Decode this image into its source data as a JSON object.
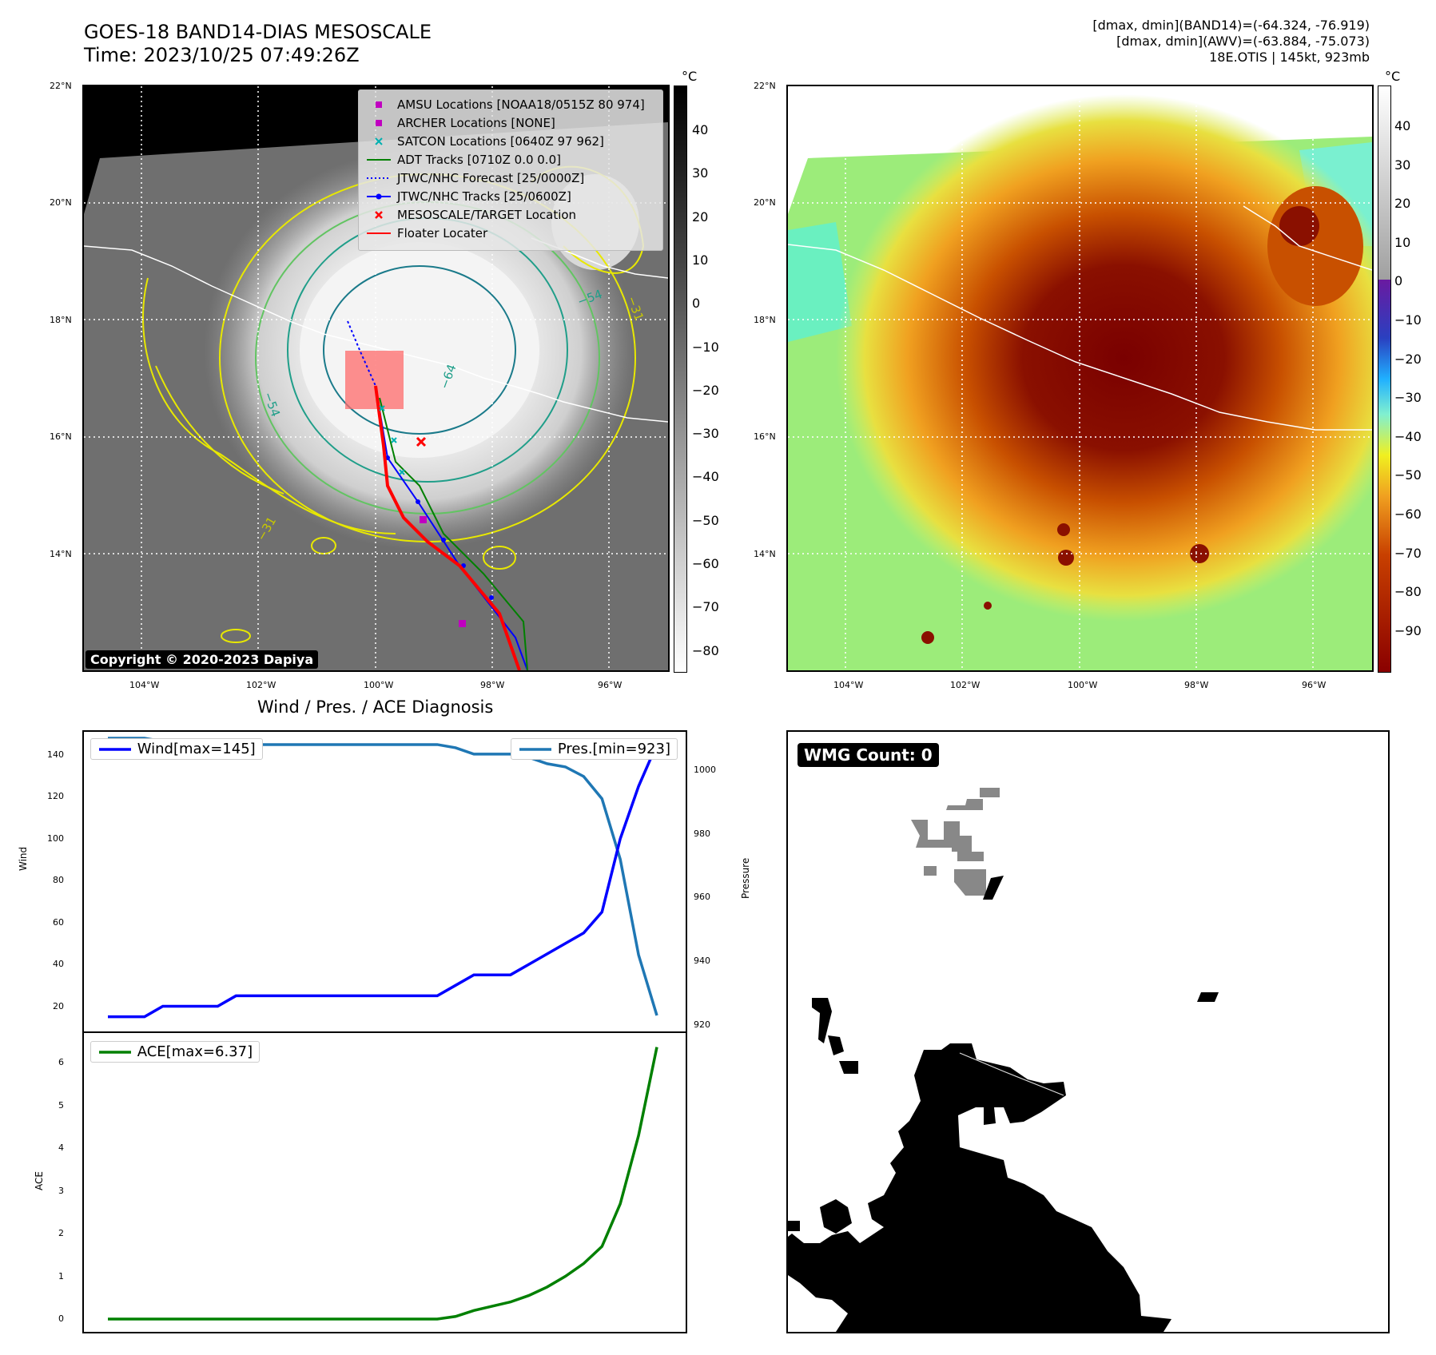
{
  "header": {
    "title_line1": "GOES-18 BAND14-DIAS MESOSCALE",
    "title_line2": "Time: 2023/10/25 07:49:26Z",
    "right_line1": "[dmax, dmin](BAND14)=(-64.324, -76.919)",
    "right_line2": "[dmax, dmin](AWV)=(-63.884, -75.073)",
    "right_line3": "18E.OTIS | 145kt, 923mb"
  },
  "map_axes": {
    "lat_labels": [
      "22°N",
      "20°N",
      "18°N",
      "16°N",
      "14°N"
    ],
    "lon_labels": [
      "104°W",
      "102°W",
      "100°W",
      "98°W",
      "96°W"
    ]
  },
  "left_map": {
    "copyright": "Copyright © 2020-2023 Dapiya",
    "colorbar_unit": "°C",
    "colorbar_ticks": [
      "40",
      "30",
      "20",
      "10",
      "0",
      "−10",
      "−20",
      "−30",
      "−40",
      "−50",
      "−60",
      "−70",
      "−80"
    ],
    "contour_labels": [
      "−54",
      "−64",
      "−54",
      "−31",
      "−31"
    ],
    "legend": [
      {
        "label": "AMSU Locations [NOAA18/0515Z 80 974]",
        "icon": "magenta-square-marker",
        "color": "#c000c0"
      },
      {
        "label": "ARCHER Locations [NONE]",
        "icon": "magenta-square-marker",
        "color": "#c000c0"
      },
      {
        "label": "SATCON Locations [0640Z 97 962]",
        "icon": "cyan-x-marker",
        "color": "#00b0b0"
      },
      {
        "label": "ADT Tracks [0710Z 0.0 0.0]",
        "icon": "green-line",
        "color": "#008000"
      },
      {
        "label": "JTWC/NHC Forecast [25/0000Z]",
        "icon": "blue-dotted-line",
        "color": "#0000ff"
      },
      {
        "label": "JTWC/NHC Tracks [25/0600Z]",
        "icon": "blue-dot-line",
        "color": "#0000ff"
      },
      {
        "label": "MESOSCALE/TARGET Location",
        "icon": "red-x-marker",
        "color": "#ff0000"
      },
      {
        "label": "Floater Locater",
        "icon": "red-line",
        "color": "#ff0000"
      }
    ]
  },
  "right_map": {
    "colorbar_unit": "°C",
    "colorbar_ticks": [
      "40",
      "30",
      "20",
      "10",
      "0",
      "−10",
      "−20",
      "−30",
      "−40",
      "−50",
      "−60",
      "−70",
      "−80",
      "−90"
    ]
  },
  "diag": {
    "title": "Wind / Pres. / ACE Diagnosis",
    "wind_legend": "Wind[max=145]",
    "pres_legend": "Pres.[min=923]",
    "ace_legend": "ACE[max=6.37]",
    "wind_axis_label": "Wind",
    "pres_axis_label": "Pressure",
    "ace_axis_label": "ACE",
    "wind_ticks": [
      "140",
      "120",
      "100",
      "80",
      "60",
      "40",
      "20"
    ],
    "pres_ticks": [
      "1000",
      "980",
      "960",
      "940",
      "920"
    ],
    "ace_ticks": [
      "6",
      "5",
      "4",
      "3",
      "2",
      "1",
      "0"
    ]
  },
  "wmg": {
    "badge": "WMG Count: 0"
  },
  "chart_data": [
    {
      "type": "line",
      "title": "Wind / Pres. / ACE Diagnosis",
      "series": [
        {
          "name": "Wind[max=145]",
          "color": "#0000ff",
          "x": [
            0,
            1,
            2,
            3,
            4,
            5,
            6,
            7,
            8,
            9,
            10,
            11,
            12,
            13,
            14,
            15,
            16,
            17,
            18,
            19,
            20,
            21,
            22,
            23,
            24,
            25,
            26,
            27,
            28,
            29,
            30
          ],
          "values": [
            15,
            15,
            15,
            20,
            20,
            20,
            20,
            25,
            25,
            25,
            25,
            25,
            25,
            25,
            25,
            25,
            25,
            25,
            25,
            30,
            35,
            35,
            35,
            40,
            45,
            50,
            55,
            65,
            100,
            125,
            145
          ]
        },
        {
          "name": "Pres.[min=923]",
          "color": "#1f77b4",
          "x": [
            0,
            1,
            2,
            3,
            4,
            5,
            6,
            7,
            8,
            9,
            10,
            11,
            12,
            13,
            14,
            15,
            16,
            17,
            18,
            19,
            20,
            21,
            22,
            23,
            24,
            25,
            26,
            27,
            28,
            29,
            30
          ],
          "values": [
            1010,
            1010,
            1010,
            1009,
            1009,
            1009,
            1009,
            1008,
            1008,
            1008,
            1008,
            1008,
            1008,
            1008,
            1008,
            1008,
            1008,
            1008,
            1008,
            1007,
            1005,
            1005,
            1005,
            1004,
            1002,
            1001,
            998,
            991,
            972,
            942,
            923
          ]
        }
      ],
      "ylabel": "Wind",
      "y2label": "Pressure",
      "ylim": [
        8,
        151
      ],
      "y2lim": [
        918,
        1012
      ]
    },
    {
      "type": "line",
      "series": [
        {
          "name": "ACE[max=6.37]",
          "color": "#008000",
          "x": [
            0,
            1,
            2,
            3,
            4,
            5,
            6,
            7,
            8,
            9,
            10,
            11,
            12,
            13,
            14,
            15,
            16,
            17,
            18,
            19,
            20,
            21,
            22,
            23,
            24,
            25,
            26,
            27,
            28,
            29,
            30
          ],
          "values": [
            0,
            0,
            0,
            0,
            0,
            0,
            0,
            0,
            0,
            0,
            0,
            0,
            0,
            0,
            0,
            0,
            0,
            0,
            0,
            0.06,
            0.2,
            0.3,
            0.4,
            0.55,
            0.75,
            1.0,
            1.3,
            1.7,
            2.7,
            4.3,
            6.37
          ]
        }
      ],
      "ylabel": "ACE",
      "ylim": [
        -0.3,
        6.7
      ]
    }
  ]
}
